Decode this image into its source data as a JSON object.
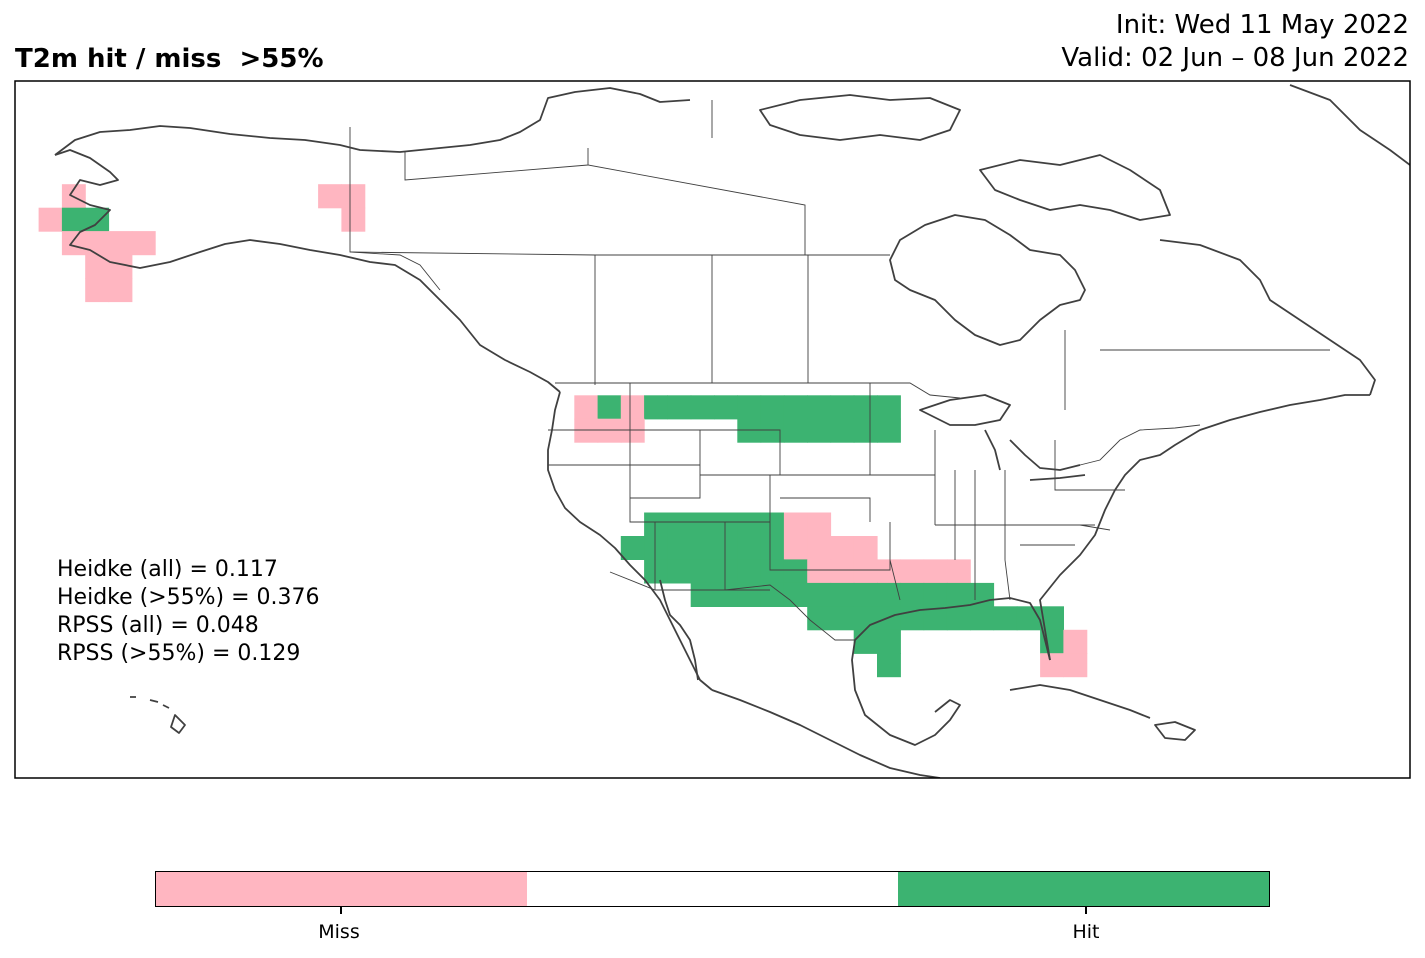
{
  "title": "T2m hit / miss  >55%",
  "init": "Init: Wed 11 May 2022",
  "valid": "Valid: 02 Jun – 08 Jun 2022",
  "stats": [
    "Heidke (all) = 0.117",
    "Heidke (>55%) = 0.376",
    "RPSS (all) = 0.048",
    "RPSS (>55%) = 0.129"
  ],
  "colors": {
    "miss": "#ffb6c1",
    "neutral": "#ffffff",
    "hit": "#3cb371",
    "coast": "#404040",
    "border": "#404040"
  },
  "colorbar": {
    "segments": [
      "miss",
      "neutral",
      "hit"
    ],
    "labels": [
      "Miss",
      "Hit"
    ]
  },
  "grid": {
    "cells": [
      {
        "lon": -166,
        "lat": 66,
        "cat": "miss"
      },
      {
        "lon": -168,
        "lat": 64,
        "cat": "miss"
      },
      {
        "lon": -166,
        "lat": 64,
        "cat": "hit"
      },
      {
        "lon": -164,
        "lat": 64,
        "cat": "hit"
      },
      {
        "lon": -166,
        "lat": 62,
        "cat": "miss"
      },
      {
        "lon": -164,
        "lat": 62,
        "cat": "miss"
      },
      {
        "lon": -162,
        "lat": 62,
        "cat": "miss"
      },
      {
        "lon": -160,
        "lat": 62,
        "cat": "miss"
      },
      {
        "lon": -164,
        "lat": 60,
        "cat": "miss"
      },
      {
        "lon": -162,
        "lat": 60,
        "cat": "miss"
      },
      {
        "lon": -164,
        "lat": 58,
        "cat": "miss"
      },
      {
        "lon": -162,
        "lat": 58,
        "cat": "miss"
      },
      {
        "lon": -144,
        "lat": 66,
        "cat": "miss"
      },
      {
        "lon": -142,
        "lat": 66,
        "cat": "miss"
      },
      {
        "lon": -142,
        "lat": 64,
        "cat": "miss"
      },
      {
        "lon": -122,
        "lat": 48,
        "cat": "miss"
      },
      {
        "lon": -120,
        "lat": 48,
        "cat": "hit"
      },
      {
        "lon": -118,
        "lat": 48,
        "cat": "miss"
      },
      {
        "lon": -116,
        "lat": 48,
        "cat": "hit"
      },
      {
        "lon": -114,
        "lat": 48,
        "cat": "hit"
      },
      {
        "lon": -112,
        "lat": 48,
        "cat": "hit"
      },
      {
        "lon": -110,
        "lat": 48,
        "cat": "hit"
      },
      {
        "lon": -108,
        "lat": 48,
        "cat": "hit"
      },
      {
        "lon": -106,
        "lat": 48,
        "cat": "hit"
      },
      {
        "lon": -104,
        "lat": 48,
        "cat": "hit"
      },
      {
        "lon": -102,
        "lat": 48,
        "cat": "hit"
      },
      {
        "lon": -100,
        "lat": 48,
        "cat": "hit"
      },
      {
        "lon": -98,
        "lat": 48,
        "cat": "hit"
      },
      {
        "lon": -96,
        "lat": 48,
        "cat": "hit"
      },
      {
        "lon": -122,
        "lat": 46,
        "cat": "miss"
      },
      {
        "lon": -120,
        "lat": 46,
        "cat": "miss"
      },
      {
        "lon": -118,
        "lat": 46,
        "cat": "miss"
      },
      {
        "lon": -108,
        "lat": 46,
        "cat": "hit"
      },
      {
        "lon": -106,
        "lat": 46,
        "cat": "hit"
      },
      {
        "lon": -104,
        "lat": 46,
        "cat": "hit"
      },
      {
        "lon": -102,
        "lat": 46,
        "cat": "hit"
      },
      {
        "lon": -100,
        "lat": 46,
        "cat": "hit"
      },
      {
        "lon": -98,
        "lat": 46,
        "cat": "hit"
      },
      {
        "lon": -96,
        "lat": 46,
        "cat": "hit"
      },
      {
        "lon": -116,
        "lat": 38,
        "cat": "hit"
      },
      {
        "lon": -114,
        "lat": 38,
        "cat": "hit"
      },
      {
        "lon": -112,
        "lat": 38,
        "cat": "hit"
      },
      {
        "lon": -110,
        "lat": 38,
        "cat": "hit"
      },
      {
        "lon": -108,
        "lat": 38,
        "cat": "hit"
      },
      {
        "lon": -106,
        "lat": 38,
        "cat": "hit"
      },
      {
        "lon": -104,
        "lat": 38,
        "cat": "miss"
      },
      {
        "lon": -102,
        "lat": 38,
        "cat": "miss"
      },
      {
        "lon": -118,
        "lat": 36,
        "cat": "hit"
      },
      {
        "lon": -116,
        "lat": 36,
        "cat": "hit"
      },
      {
        "lon": -114,
        "lat": 36,
        "cat": "hit"
      },
      {
        "lon": -112,
        "lat": 36,
        "cat": "hit"
      },
      {
        "lon": -110,
        "lat": 36,
        "cat": "hit"
      },
      {
        "lon": -108,
        "lat": 36,
        "cat": "hit"
      },
      {
        "lon": -106,
        "lat": 36,
        "cat": "hit"
      },
      {
        "lon": -104,
        "lat": 36,
        "cat": "miss"
      },
      {
        "lon": -102,
        "lat": 36,
        "cat": "miss"
      },
      {
        "lon": -100,
        "lat": 36,
        "cat": "miss"
      },
      {
        "lon": -98,
        "lat": 36,
        "cat": "miss"
      },
      {
        "lon": -116,
        "lat": 34,
        "cat": "hit"
      },
      {
        "lon": -114,
        "lat": 34,
        "cat": "hit"
      },
      {
        "lon": -112,
        "lat": 34,
        "cat": "hit"
      },
      {
        "lon": -110,
        "lat": 34,
        "cat": "hit"
      },
      {
        "lon": -108,
        "lat": 34,
        "cat": "hit"
      },
      {
        "lon": -106,
        "lat": 34,
        "cat": "hit"
      },
      {
        "lon": -104,
        "lat": 34,
        "cat": "hit"
      },
      {
        "lon": -102,
        "lat": 34,
        "cat": "miss"
      },
      {
        "lon": -100,
        "lat": 34,
        "cat": "miss"
      },
      {
        "lon": -98,
        "lat": 34,
        "cat": "miss"
      },
      {
        "lon": -96,
        "lat": 34,
        "cat": "miss"
      },
      {
        "lon": -94,
        "lat": 34,
        "cat": "miss"
      },
      {
        "lon": -92,
        "lat": 34,
        "cat": "miss"
      },
      {
        "lon": -90,
        "lat": 34,
        "cat": "miss"
      },
      {
        "lon": -112,
        "lat": 32,
        "cat": "hit"
      },
      {
        "lon": -110,
        "lat": 32,
        "cat": "hit"
      },
      {
        "lon": -108,
        "lat": 32,
        "cat": "hit"
      },
      {
        "lon": -106,
        "lat": 32,
        "cat": "hit"
      },
      {
        "lon": -104,
        "lat": 32,
        "cat": "hit"
      },
      {
        "lon": -102,
        "lat": 32,
        "cat": "hit"
      },
      {
        "lon": -100,
        "lat": 32,
        "cat": "hit"
      },
      {
        "lon": -98,
        "lat": 32,
        "cat": "hit"
      },
      {
        "lon": -96,
        "lat": 32,
        "cat": "hit"
      },
      {
        "lon": -94,
        "lat": 32,
        "cat": "hit"
      },
      {
        "lon": -92,
        "lat": 32,
        "cat": "hit"
      },
      {
        "lon": -90,
        "lat": 32,
        "cat": "hit"
      },
      {
        "lon": -88,
        "lat": 32,
        "cat": "hit"
      },
      {
        "lon": -102,
        "lat": 30,
        "cat": "hit"
      },
      {
        "lon": -100,
        "lat": 30,
        "cat": "hit"
      },
      {
        "lon": -98,
        "lat": 30,
        "cat": "hit"
      },
      {
        "lon": -96,
        "lat": 30,
        "cat": "hit"
      },
      {
        "lon": -94,
        "lat": 30,
        "cat": "hit"
      },
      {
        "lon": -92,
        "lat": 30,
        "cat": "hit"
      },
      {
        "lon": -90,
        "lat": 30,
        "cat": "hit"
      },
      {
        "lon": -88,
        "lat": 30,
        "cat": "hit"
      },
      {
        "lon": -86,
        "lat": 30,
        "cat": "hit"
      },
      {
        "lon": -84,
        "lat": 30,
        "cat": "hit"
      },
      {
        "lon": -82,
        "lat": 30,
        "cat": "hit"
      },
      {
        "lon": -98,
        "lat": 28,
        "cat": "hit"
      },
      {
        "lon": -96,
        "lat": 28,
        "cat": "hit"
      },
      {
        "lon": -82,
        "lat": 28,
        "cat": "hit"
      },
      {
        "lon": -80,
        "lat": 28,
        "cat": "miss"
      },
      {
        "lon": -82,
        "lat": 26,
        "cat": "miss"
      },
      {
        "lon": -80,
        "lat": 26,
        "cat": "miss"
      },
      {
        "lon": -96,
        "lat": 26,
        "cat": "hit"
      }
    ]
  }
}
